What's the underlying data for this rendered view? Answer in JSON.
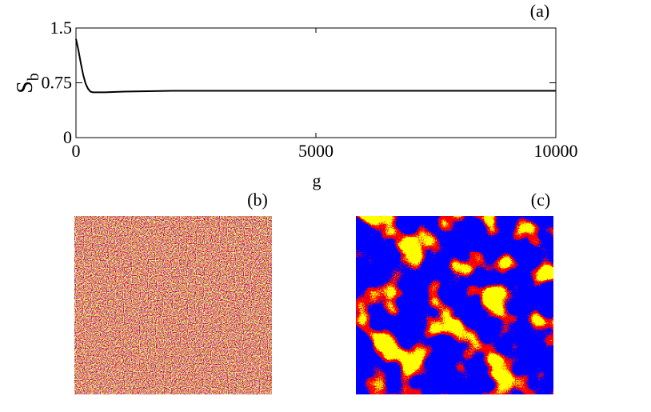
{
  "chart_data": {
    "type": "line",
    "ylabel": "S",
    "ylabel_subscript": "b",
    "xlabel": "g",
    "annotation": "(a)",
    "x": [
      0,
      50,
      100,
      150,
      200,
      250,
      300,
      350,
      400,
      600,
      1000,
      2000,
      3000,
      4000,
      5000,
      6000,
      7000,
      8000,
      9000,
      10000
    ],
    "series": [
      {
        "name": "S_b",
        "color": "#000000",
        "values": [
          1.35,
          1.2,
          1.02,
          0.86,
          0.74,
          0.67,
          0.63,
          0.62,
          0.62,
          0.62,
          0.63,
          0.64,
          0.64,
          0.64,
          0.64,
          0.64,
          0.64,
          0.64,
          0.64,
          0.64
        ]
      }
    ],
    "xlim": [
      0,
      10000
    ],
    "xticks": [
      0,
      5000,
      10000
    ],
    "ylim": [
      0,
      1.5
    ],
    "yticks": [
      0,
      0.75,
      1.5
    ]
  },
  "panels": [
    "(b)",
    "(c)"
  ]
}
